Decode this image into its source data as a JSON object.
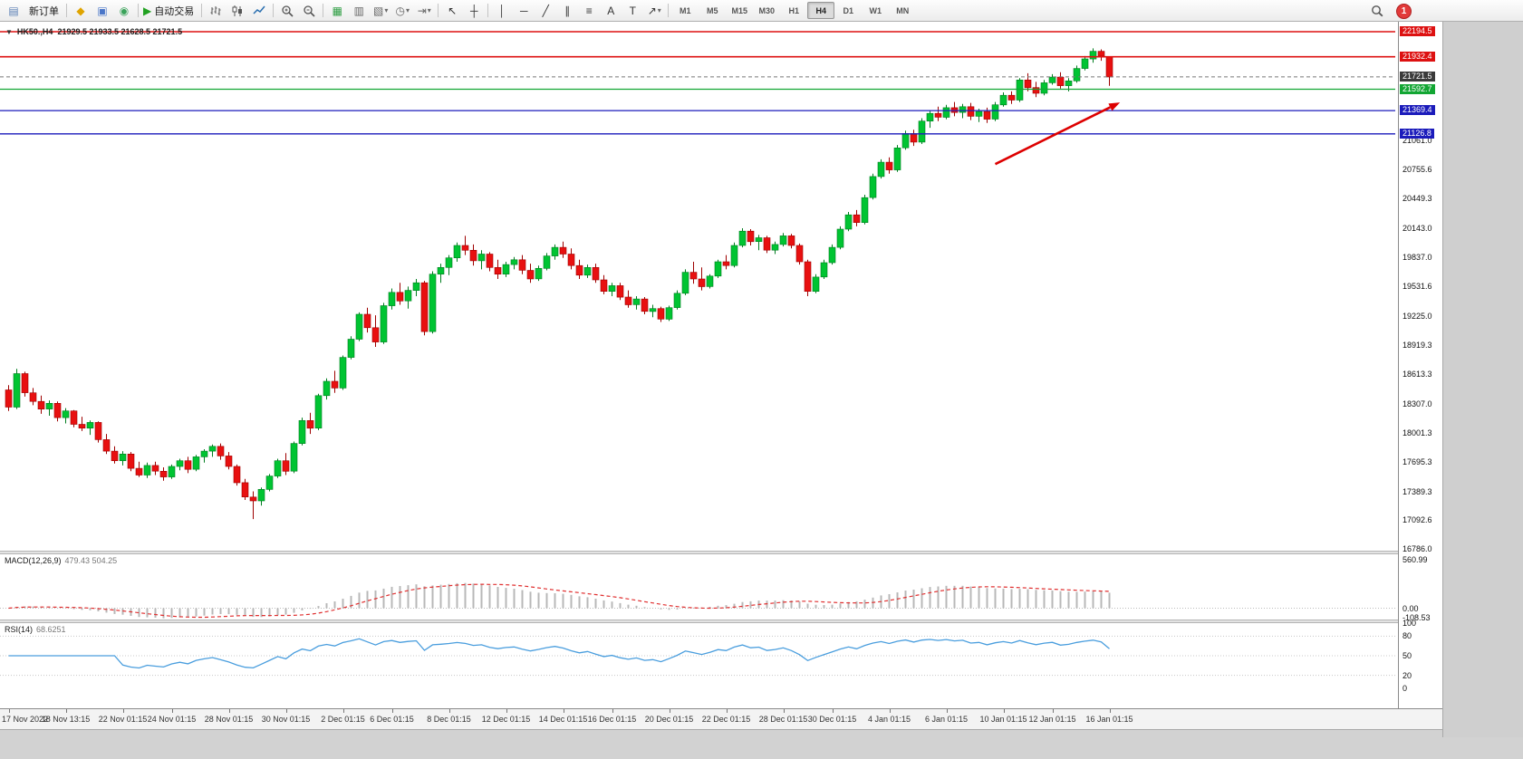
{
  "toolbar": {
    "notification_count": "1",
    "groups": [
      [
        {
          "name": "new-order-icon",
          "glyph": "▤",
          "color": "#5a7fb5"
        },
        {
          "name": "new-order-button",
          "label": "新订单"
        }
      ],
      [
        {
          "name": "gold-icon",
          "glyph": "◆",
          "color": "#dfa400"
        },
        {
          "name": "accounts-icon",
          "glyph": "▣",
          "color": "#4a76c8"
        },
        {
          "name": "community-icon",
          "glyph": "◉",
          "color": "#3aa35a"
        }
      ],
      [
        {
          "name": "autotrading-button",
          "glyph": "▶",
          "color": "#21a121",
          "label": "自动交易"
        }
      ],
      [
        {
          "name": "bars-chart-icon",
          "svg": "bars"
        },
        {
          "name": "candlestick-chart-icon",
          "svg": "candles"
        },
        {
          "name": "line-chart-icon",
          "svg": "linechart"
        }
      ],
      [
        {
          "name": "zoom-in-icon",
          "svg": "zoomin"
        },
        {
          "name": "zoom-out-icon",
          "svg": "zoomout"
        }
      ],
      [
        {
          "name": "tile-windows-icon",
          "glyph": "▦",
          "color": "#2f9e44"
        },
        {
          "name": "arrange-windows-icon",
          "glyph": "▥",
          "color": "#666666"
        },
        {
          "name": "auto-arrange-icon",
          "glyph": "▧",
          "color": "#666666",
          "caret": true
        },
        {
          "name": "profiles-dropdown",
          "glyph": "◷",
          "color": "#666666",
          "caret": true
        },
        {
          "name": "chart-shift-icon",
          "glyph": "⇥",
          "color": "#666666",
          "caret": true
        }
      ],
      [
        {
          "name": "cursor-icon",
          "glyph": "↖",
          "color": "#333333"
        },
        {
          "name": "crosshair-icon",
          "glyph": "┼",
          "color": "#333333"
        }
      ],
      [
        {
          "name": "vertical-line-icon",
          "glyph": "│",
          "color": "#333333"
        },
        {
          "name": "horizontal-line-icon",
          "glyph": "─",
          "color": "#333333"
        },
        {
          "name": "trendline-icon",
          "glyph": "╱",
          "color": "#333333"
        },
        {
          "name": "equidistant-channel-icon",
          "glyph": "∥",
          "color": "#333333"
        },
        {
          "name": "fibonacci-icon",
          "glyph": "≡",
          "color": "#333333"
        },
        {
          "name": "text-icon",
          "glyph": "A",
          "color": "#333333"
        },
        {
          "name": "text-label-icon",
          "glyph": "T",
          "color": "#333333"
        },
        {
          "name": "arrows-dropdown",
          "glyph": "↗",
          "color": "#333333",
          "caret": true
        }
      ],
      [
        {
          "name": "tf-m1",
          "label": "M1",
          "tf": true
        },
        {
          "name": "tf-m5",
          "label": "M5",
          "tf": true
        },
        {
          "name": "tf-m15",
          "label": "M15",
          "tf": true
        },
        {
          "name": "tf-m30",
          "label": "M30",
          "tf": true
        },
        {
          "name": "tf-h1",
          "label": "H1",
          "tf": true
        },
        {
          "name": "tf-h4",
          "label": "H4",
          "tf": true,
          "active": true
        },
        {
          "name": "tf-d1",
          "label": "D1",
          "tf": true
        },
        {
          "name": "tf-w1",
          "label": "W1",
          "tf": true
        },
        {
          "name": "tf-mn",
          "label": "MN",
          "tf": true
        }
      ]
    ]
  },
  "chart": {
    "symbol_label": "HK50.,H4",
    "ohlc_label": "21929.5 21933.5 21628.5 21721.5",
    "price_axis": {
      "min": 16760,
      "max": 22270,
      "scale_labels": [
        "21061.0",
        "20755.6",
        "20449.3",
        "20143.0",
        "19837.0",
        "19531.6",
        "19225.0",
        "18919.3",
        "18613.3",
        "18307.0",
        "18001.3",
        "17695.3",
        "17389.3",
        "17092.6",
        "16786.0"
      ]
    },
    "levels": [
      {
        "label": "22194.5",
        "value": 22194.5,
        "color": "#dd1111"
      },
      {
        "label": "21932.4",
        "value": 21932.4,
        "color": "#dd1111"
      },
      {
        "label": "21592.7",
        "value": 21592.7,
        "color": "#12a633"
      },
      {
        "label": "21369.4",
        "value": 21369.4,
        "color": "#1b1bbb"
      },
      {
        "label": "21126.8",
        "value": 21126.8,
        "color": "#1b1bbb"
      }
    ],
    "current_price": {
      "label": "21721.5",
      "value": 21721.5,
      "color": "#3a3a3a"
    }
  },
  "chart_data": {
    "type": "candlestick",
    "symbol": "HK50",
    "timeframe": "H4",
    "up_color": "#00c432",
    "down_color": "#e81010",
    "candles": [
      [
        18450,
        18500,
        18230,
        18270
      ],
      [
        18270,
        18670,
        18250,
        18620
      ],
      [
        18620,
        18640,
        18380,
        18420
      ],
      [
        18420,
        18470,
        18290,
        18330
      ],
      [
        18330,
        18390,
        18200,
        18250
      ],
      [
        18250,
        18340,
        18180,
        18310
      ],
      [
        18310,
        18330,
        18120,
        18160
      ],
      [
        18160,
        18260,
        18100,
        18230
      ],
      [
        18230,
        18240,
        18060,
        18090
      ],
      [
        18090,
        18170,
        18020,
        18050
      ],
      [
        18050,
        18130,
        17980,
        18110
      ],
      [
        18110,
        18120,
        17900,
        17930
      ],
      [
        17930,
        17990,
        17780,
        17810
      ],
      [
        17810,
        17860,
        17680,
        17710
      ],
      [
        17710,
        17810,
        17660,
        17780
      ],
      [
        17780,
        17800,
        17600,
        17630
      ],
      [
        17630,
        17700,
        17540,
        17560
      ],
      [
        17560,
        17690,
        17530,
        17660
      ],
      [
        17660,
        17700,
        17560,
        17600
      ],
      [
        17600,
        17640,
        17500,
        17540
      ],
      [
        17540,
        17670,
        17520,
        17650
      ],
      [
        17650,
        17730,
        17610,
        17710
      ],
      [
        17710,
        17750,
        17580,
        17620
      ],
      [
        17620,
        17770,
        17600,
        17750
      ],
      [
        17750,
        17830,
        17690,
        17810
      ],
      [
        17810,
        17880,
        17750,
        17860
      ],
      [
        17860,
        17890,
        17720,
        17760
      ],
      [
        17760,
        17800,
        17620,
        17650
      ],
      [
        17650,
        17670,
        17450,
        17480
      ],
      [
        17480,
        17520,
        17300,
        17330
      ],
      [
        17330,
        17390,
        17100,
        17290
      ],
      [
        17290,
        17430,
        17240,
        17410
      ],
      [
        17410,
        17570,
        17390,
        17550
      ],
      [
        17550,
        17730,
        17530,
        17710
      ],
      [
        17710,
        17790,
        17560,
        17600
      ],
      [
        17600,
        17910,
        17580,
        17890
      ],
      [
        17890,
        18160,
        17870,
        18130
      ],
      [
        18130,
        18210,
        17990,
        18050
      ],
      [
        18050,
        18410,
        18030,
        18390
      ],
      [
        18390,
        18570,
        18350,
        18540
      ],
      [
        18540,
        18650,
        18420,
        18470
      ],
      [
        18470,
        18810,
        18450,
        18790
      ],
      [
        18790,
        19010,
        18770,
        18980
      ],
      [
        18980,
        19260,
        18960,
        19240
      ],
      [
        19240,
        19310,
        19050,
        19100
      ],
      [
        19100,
        19230,
        18900,
        18950
      ],
      [
        18950,
        19360,
        18930,
        19330
      ],
      [
        19330,
        19510,
        19290,
        19470
      ],
      [
        19470,
        19570,
        19340,
        19380
      ],
      [
        19380,
        19530,
        19300,
        19490
      ],
      [
        19490,
        19610,
        19430,
        19570
      ],
      [
        19570,
        19590,
        19020,
        19060
      ],
      [
        19060,
        19690,
        19040,
        19660
      ],
      [
        19660,
        19770,
        19570,
        19730
      ],
      [
        19730,
        19860,
        19650,
        19830
      ],
      [
        19830,
        19990,
        19790,
        19960
      ],
      [
        19960,
        20060,
        19860,
        19910
      ],
      [
        19910,
        19970,
        19750,
        19800
      ],
      [
        19800,
        19910,
        19710,
        19870
      ],
      [
        19870,
        19890,
        19690,
        19730
      ],
      [
        19730,
        19810,
        19610,
        19660
      ],
      [
        19660,
        19790,
        19630,
        19760
      ],
      [
        19760,
        19840,
        19710,
        19810
      ],
      [
        19810,
        19860,
        19660,
        19700
      ],
      [
        19700,
        19770,
        19570,
        19610
      ],
      [
        19610,
        19750,
        19590,
        19720
      ],
      [
        19720,
        19880,
        19700,
        19850
      ],
      [
        19850,
        19970,
        19810,
        19940
      ],
      [
        19940,
        20000,
        19830,
        19870
      ],
      [
        19870,
        19930,
        19710,
        19750
      ],
      [
        19750,
        19810,
        19610,
        19650
      ],
      [
        19650,
        19760,
        19620,
        19730
      ],
      [
        19730,
        19770,
        19570,
        19600
      ],
      [
        19600,
        19650,
        19450,
        19480
      ],
      [
        19480,
        19570,
        19430,
        19540
      ],
      [
        19540,
        19570,
        19390,
        19420
      ],
      [
        19420,
        19490,
        19310,
        19340
      ],
      [
        19340,
        19430,
        19290,
        19400
      ],
      [
        19400,
        19420,
        19240,
        19270
      ],
      [
        19270,
        19340,
        19210,
        19300
      ],
      [
        19300,
        19320,
        19160,
        19190
      ],
      [
        19190,
        19330,
        19170,
        19310
      ],
      [
        19310,
        19490,
        19290,
        19460
      ],
      [
        19460,
        19710,
        19440,
        19680
      ],
      [
        19680,
        19790,
        19560,
        19610
      ],
      [
        19610,
        19730,
        19490,
        19530
      ],
      [
        19530,
        19660,
        19510,
        19640
      ],
      [
        19640,
        19810,
        19620,
        19790
      ],
      [
        19790,
        19860,
        19710,
        19750
      ],
      [
        19750,
        19990,
        19730,
        19960
      ],
      [
        19960,
        20140,
        19940,
        20110
      ],
      [
        20110,
        20130,
        19960,
        20000
      ],
      [
        20000,
        20070,
        19910,
        20040
      ],
      [
        20040,
        20060,
        19880,
        19910
      ],
      [
        19910,
        20000,
        19870,
        19970
      ],
      [
        19970,
        20090,
        19950,
        20060
      ],
      [
        20060,
        20080,
        19930,
        19960
      ],
      [
        19960,
        19980,
        19760,
        19790
      ],
      [
        19790,
        19810,
        19430,
        19480
      ],
      [
        19480,
        19660,
        19460,
        19630
      ],
      [
        19630,
        19810,
        19610,
        19780
      ],
      [
        19780,
        19970,
        19760,
        19940
      ],
      [
        19940,
        20160,
        19920,
        20130
      ],
      [
        20130,
        20310,
        20110,
        20280
      ],
      [
        20280,
        20330,
        20160,
        20200
      ],
      [
        20200,
        20490,
        20180,
        20460
      ],
      [
        20460,
        20710,
        20440,
        20680
      ],
      [
        20680,
        20860,
        20660,
        20830
      ],
      [
        20830,
        20880,
        20710,
        20750
      ],
      [
        20750,
        21010,
        20730,
        20980
      ],
      [
        20980,
        21160,
        20960,
        21130
      ],
      [
        21130,
        21170,
        21000,
        21040
      ],
      [
        21040,
        21290,
        21020,
        21260
      ],
      [
        21260,
        21370,
        21190,
        21340
      ],
      [
        21340,
        21410,
        21260,
        21300
      ],
      [
        21300,
        21430,
        21280,
        21400
      ],
      [
        21400,
        21460,
        21310,
        21350
      ],
      [
        21350,
        21440,
        21290,
        21410
      ],
      [
        21410,
        21450,
        21270,
        21310
      ],
      [
        21310,
        21390,
        21250,
        21360
      ],
      [
        21360,
        21400,
        21240,
        21280
      ],
      [
        21280,
        21460,
        21260,
        21430
      ],
      [
        21430,
        21560,
        21410,
        21530
      ],
      [
        21530,
        21570,
        21440,
        21480
      ],
      [
        21480,
        21710,
        21460,
        21690
      ],
      [
        21690,
        21760,
        21570,
        21610
      ],
      [
        21610,
        21670,
        21510,
        21550
      ],
      [
        21550,
        21690,
        21530,
        21660
      ],
      [
        21660,
        21750,
        21640,
        21720
      ],
      [
        21720,
        21770,
        21600,
        21630
      ],
      [
        21630,
        21710,
        21570,
        21680
      ],
      [
        21680,
        21840,
        21660,
        21810
      ],
      [
        21810,
        21940,
        21790,
        21910
      ],
      [
        21910,
        22020,
        21870,
        21990
      ],
      [
        21990,
        22010,
        21890,
        21940
      ],
      [
        21929.5,
        21933.5,
        21628.5,
        21721.5
      ]
    ],
    "x_labels": [
      "17 Nov 2022",
      "18 Nov 13:15",
      "22 Nov 01:15",
      "24 Nov 01:15",
      "28 Nov 01:15",
      "30 Nov 01:15",
      "2 Dec 01:15",
      "6 Dec 01:15",
      "8 Dec 01:15",
      "12 Dec 01:15",
      "14 Dec 01:15",
      "16 Dec 01:15",
      "20 Dec 01:15",
      "22 Dec 01:15",
      "28 Dec 01:15",
      "30 Dec 01:15",
      "4 Jan 01:15",
      "6 Jan 01:15",
      "10 Jan 01:15",
      "12 Jan 01:15",
      "16 Jan 01:15"
    ],
    "annotations": [
      {
        "type": "arrow",
        "color": "#dd0000",
        "from": {
          "candle": 121,
          "price": 20810
        },
        "to": {
          "candle": 136.3,
          "price": 21455
        }
      }
    ],
    "indicators": {
      "macd": {
        "label": "MACD(12,26,9)",
        "values_label": "479.43 504.25",
        "params": [
          12,
          26,
          9
        ],
        "scale_labels": [
          "560.99",
          "0.00",
          "-108.53"
        ],
        "range": [
          -130,
          620
        ],
        "histogram_color": "#b8b8b8",
        "signal_color": "#e03030"
      },
      "rsi": {
        "label": "RSI(14)",
        "values_label": "68.6251",
        "period": 14,
        "scale_labels": [
          "100",
          "80",
          "50",
          "20",
          "0"
        ],
        "guides": [
          80,
          50,
          20
        ],
        "range": [
          0,
          100
        ],
        "line_color": "#4a9ede"
      }
    }
  }
}
